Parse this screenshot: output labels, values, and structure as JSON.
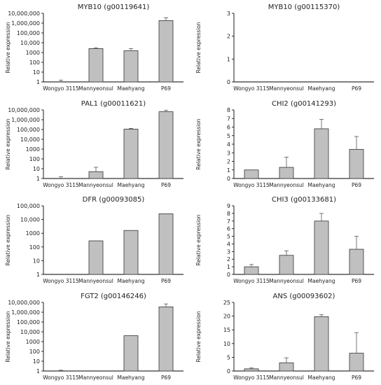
{
  "figure": {
    "categories": [
      "Wongyo 3115",
      "Mannyeonsul",
      "Maehyang",
      "P69"
    ],
    "ylabel": "Relative expression",
    "bar_color": "#c0c0c0",
    "axis_color": "#000000"
  },
  "chart_data": [
    {
      "type": "bar",
      "title": "MYB10 (g00119641)",
      "scale": "log",
      "ylabel": "Relative expression",
      "categories": [
        "Wongyo 3115",
        "Mannyeonsul",
        "Maehyang",
        "P69"
      ],
      "yticks": [
        "1",
        "10",
        "100",
        "1000",
        "10,000",
        "100,000",
        "1,000,000",
        "10,000,000"
      ],
      "ylim": [
        1,
        10000000
      ],
      "values": [
        1,
        2500,
        1500,
        1800000
      ],
      "errors_upper": [
        1.5,
        3000,
        2500,
        3500000
      ]
    },
    {
      "type": "bar",
      "title": "MYB10 (g00115370)",
      "scale": "linear",
      "ylabel": "Relative expression",
      "categories": [
        "Wongyo 3115",
        "Mannyeonsul",
        "Maehyang",
        "P69"
      ],
      "yticks": [
        "0",
        "1",
        "2",
        "3"
      ],
      "ylim": [
        0,
        3
      ],
      "values": [
        0,
        0,
        0,
        0
      ],
      "errors_upper": [
        0,
        0,
        0,
        0
      ]
    },
    {
      "type": "bar",
      "title": "PAL1 (g00011621)",
      "scale": "log",
      "ylabel": "Relative expression",
      "categories": [
        "Wongyo 3115",
        "Mannyeonsul",
        "Maehyang",
        "P69"
      ],
      "yticks": [
        "1",
        "10",
        "100",
        "1000",
        "10,000",
        "100,000",
        "1,000,000",
        "10,000,000"
      ],
      "ylim": [
        1,
        10000000
      ],
      "values": [
        1,
        5,
        110000,
        6500000
      ],
      "errors_upper": [
        1.5,
        14,
        130000,
        9000000
      ]
    },
    {
      "type": "bar",
      "title": "CHI2 (g00141293)",
      "scale": "linear",
      "ylabel": "Relative expression",
      "categories": [
        "Wongyo 3115",
        "Mannyeonsul",
        "Maehyang",
        "P69"
      ],
      "yticks": [
        "0",
        "1",
        "2",
        "3",
        "4",
        "5",
        "6",
        "7",
        "8"
      ],
      "ylim": [
        0,
        8
      ],
      "values": [
        1.0,
        1.3,
        5.8,
        3.4
      ],
      "errors_upper": [
        1.05,
        2.5,
        6.9,
        4.9
      ]
    },
    {
      "type": "bar",
      "title": "DFR (g00093085)",
      "scale": "log",
      "ylabel": "Relative expression",
      "categories": [
        "Wongyo 3115",
        "Mannyeonsul",
        "Maehyang",
        "P69"
      ],
      "yticks": [
        "1",
        "10",
        "100",
        "1000",
        "10,000",
        "100,000"
      ],
      "ylim": [
        1,
        100000
      ],
      "values": [
        1,
        280,
        1600,
        26000
      ],
      "errors_upper": [
        1,
        280,
        1600,
        26000
      ]
    },
    {
      "type": "bar",
      "title": "CHI3 (g00133681)",
      "scale": "linear",
      "ylabel": "Relative expression",
      "categories": [
        "Wongyo 3115",
        "Mannyeonsul",
        "Maehyang",
        "P69"
      ],
      "yticks": [
        "0",
        "1",
        "2",
        "3",
        "4",
        "5",
        "6",
        "7",
        "8",
        "9"
      ],
      "ylim": [
        0,
        9
      ],
      "values": [
        1.0,
        2.5,
        7.0,
        3.3
      ],
      "errors_upper": [
        1.3,
        3.1,
        8.0,
        5.0
      ]
    },
    {
      "type": "bar",
      "title": "FGT2 (g00146246)",
      "scale": "log",
      "ylabel": "Relative expression",
      "categories": [
        "Wongyo 3115",
        "Mannyeonsul",
        "Maehyang",
        "P69"
      ],
      "yticks": [
        "1",
        "10",
        "100",
        "1000",
        "10,000",
        "100,000",
        "1,000,000",
        "10,000,000"
      ],
      "ylim": [
        1,
        10000000
      ],
      "values": [
        1,
        1,
        4000,
        3500000
      ],
      "errors_upper": [
        1.2,
        1,
        4500,
        7000000
      ]
    },
    {
      "type": "bar",
      "title": "ANS (g00093602)",
      "scale": "linear",
      "ylabel": "Relative expression",
      "categories": [
        "Wongyo 3115",
        "Mannyeonsul",
        "Maehyang",
        "P69"
      ],
      "yticks": [
        "0",
        "5",
        "10",
        "15",
        "20",
        "25"
      ],
      "ylim": [
        0,
        25
      ],
      "values": [
        0.8,
        3.0,
        19.8,
        6.5
      ],
      "errors_upper": [
        1.1,
        4.8,
        20.5,
        14.0
      ]
    }
  ]
}
